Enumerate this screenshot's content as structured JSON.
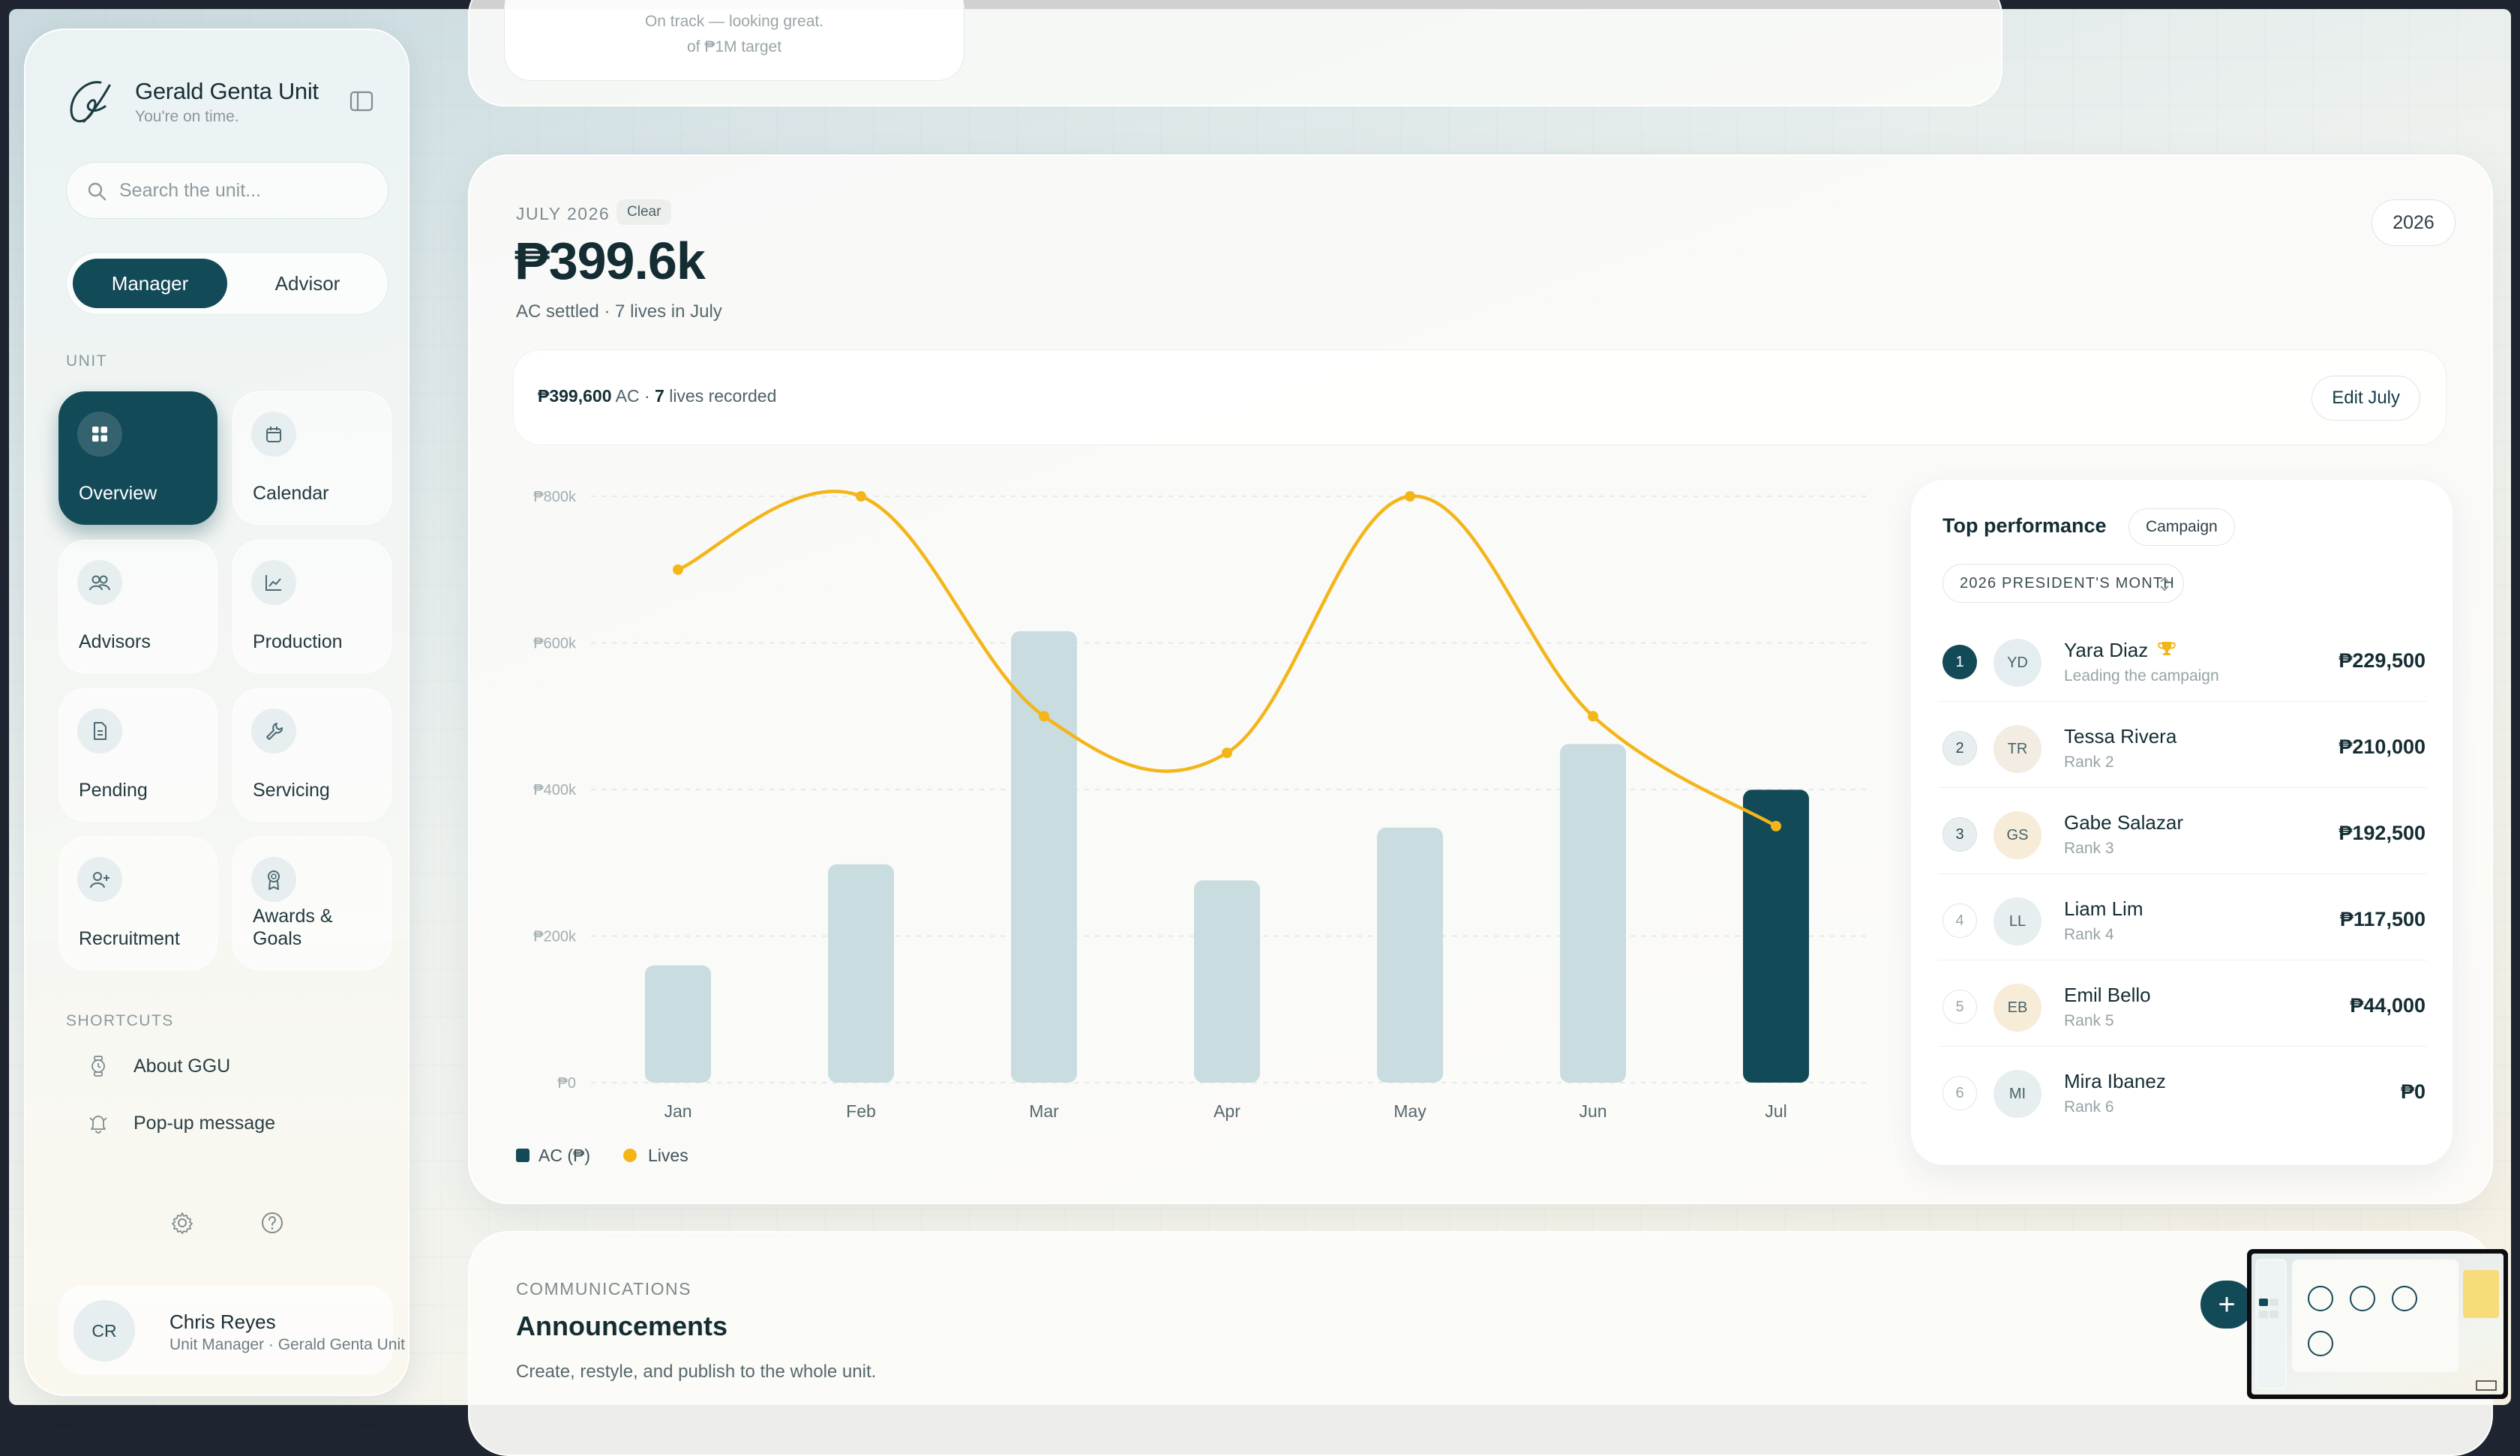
{
  "brand": {
    "title": "Gerald Genta Unit",
    "subtitle": "You're on time."
  },
  "search": {
    "placeholder": "Search the unit..."
  },
  "roles": {
    "active": "Manager",
    "inactive": "Advisor"
  },
  "sidebar": {
    "unit_label": "UNIT",
    "tiles": [
      {
        "label": "Overview",
        "icon": "grid-icon",
        "active": true
      },
      {
        "label": "Calendar",
        "icon": "calendar-icon",
        "active": false
      },
      {
        "label": "Advisors",
        "icon": "users-icon",
        "active": false
      },
      {
        "label": "Production",
        "icon": "chart-line-icon",
        "active": false
      },
      {
        "label": "Pending",
        "icon": "document-icon",
        "active": false
      },
      {
        "label": "Servicing",
        "icon": "wrench-icon",
        "active": false
      },
      {
        "label": "Recruitment",
        "icon": "user-plus-icon",
        "active": false
      },
      {
        "label": "Awards & Goals",
        "icon": "award-icon",
        "active": false
      }
    ],
    "shortcuts_label": "SHORTCUTS",
    "shortcuts": [
      {
        "label": "About GGU",
        "icon": "watch-icon"
      },
      {
        "label": "Pop-up message",
        "icon": "bell-icon"
      }
    ]
  },
  "user": {
    "initials": "CR",
    "name": "Chris Reyes",
    "role": "Unit Manager · Gerald Genta Unit"
  },
  "top_card": {
    "line1": "On track — looking great.",
    "line2": "of ₱1M target"
  },
  "month": {
    "label": "JULY 2026",
    "clear": "Clear",
    "amount": "₱399.6k",
    "sub": "AC settled · 7 lives in July",
    "year": "2026",
    "summary_ac": "₱399,600",
    "summary_ac_unit": "AC",
    "summary_sep": " · ",
    "summary_lives": "7",
    "summary_lives_label": "lives recorded",
    "edit_label": "Edit July"
  },
  "chart_data": {
    "type": "bar",
    "categories": [
      "Jan",
      "Feb",
      "Mar",
      "Apr",
      "May",
      "Jun",
      "Jul"
    ],
    "y_ticks": [
      "₱0",
      "₱200k",
      "₱400k",
      "₱600k",
      "₱800k"
    ],
    "ylim": [
      0,
      800000
    ],
    "series": [
      {
        "name": "AC (₱)",
        "kind": "bar",
        "values": [
          160000,
          298000,
          616000,
          276000,
          348000,
          462000,
          399600
        ],
        "highlight_index": 6
      },
      {
        "name": "Lives",
        "kind": "line",
        "values": [
          700000,
          800000,
          500000,
          450000,
          800000,
          500000,
          350000
        ]
      }
    ],
    "colors": {
      "bar": "#c9dcdf",
      "bar_highlight": "#134a58",
      "line": "#f4b519",
      "grid": "#dfe4e2"
    },
    "legend": "bottom-left",
    "grid": true
  },
  "performance": {
    "title": "Top performance",
    "badge": "Campaign",
    "campaign": "2026 PRESIDENT'S MONTH",
    "rows": [
      {
        "rank": "1",
        "initials": "YD",
        "name": "Yara Diaz",
        "sub": "Leading the campaign",
        "amount": "₱229,500",
        "avatar_color": "#e4eef0",
        "trophy": true
      },
      {
        "rank": "2",
        "initials": "TR",
        "name": "Tessa Rivera",
        "sub": "Rank 2",
        "amount": "₱210,000",
        "avatar_color": "#f3ece2"
      },
      {
        "rank": "3",
        "initials": "GS",
        "name": "Gabe Salazar",
        "sub": "Rank 3",
        "amount": "₱192,500",
        "avatar_color": "#f6ecd8"
      },
      {
        "rank": "4",
        "initials": "LL",
        "name": "Liam Lim",
        "sub": "Rank 4",
        "amount": "₱117,500",
        "avatar_color": "#e6eeef"
      },
      {
        "rank": "5",
        "initials": "EB",
        "name": "Emil Bello",
        "sub": "Rank 5",
        "amount": "₱44,000",
        "avatar_color": "#f6ecd8"
      },
      {
        "rank": "6",
        "initials": "MI",
        "name": "Mira Ibanez",
        "sub": "Rank 6",
        "amount": "₱0",
        "avatar_color": "#e6eeef"
      }
    ]
  },
  "communications": {
    "label": "COMMUNICATIONS",
    "title": "Announcements",
    "sub": "Create, restyle, and publish to the whole unit.",
    "fab": "+"
  }
}
